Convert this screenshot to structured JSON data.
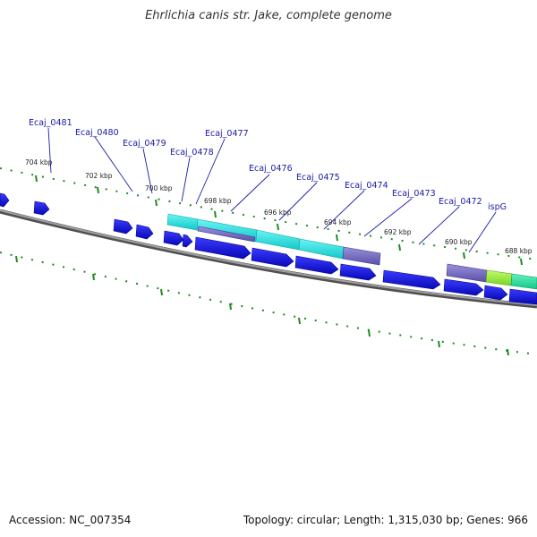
{
  "title": "Ehrlichia canis str. Jake, complete genome",
  "footer": {
    "accession": "Accession: NC_007354",
    "stats": "Topology: circular; Length: 1,315,030 bp; Genes: 966"
  },
  "colors": {
    "forward_cds": "#1010dd",
    "reverse_cds": "#1010dd",
    "cyan_feature": "#19e6e6",
    "purple_feature": "#7a70c8",
    "green_feature": "#96ee3c",
    "teal_feature": "#22dd99",
    "tick": "#1f8a1f",
    "backbone": "#7a7a7a",
    "gene_label": "#1a1aa6"
  },
  "kbp_markers": [
    "704 kbp",
    "702 kbp",
    "700 kbp",
    "698 kbp",
    "696 kbp",
    "694 kbp",
    "692 kbp",
    "690 kbp",
    "688 kbp"
  ],
  "gene_labels": [
    "Ecaj_0481",
    "Ecaj_0480",
    "Ecaj_0479",
    "Ecaj_0478",
    "Ecaj_0477",
    "Ecaj_0476",
    "Ecaj_0475",
    "Ecaj_0474",
    "Ecaj_0473",
    "Ecaj_0472",
    "ispG"
  ]
}
